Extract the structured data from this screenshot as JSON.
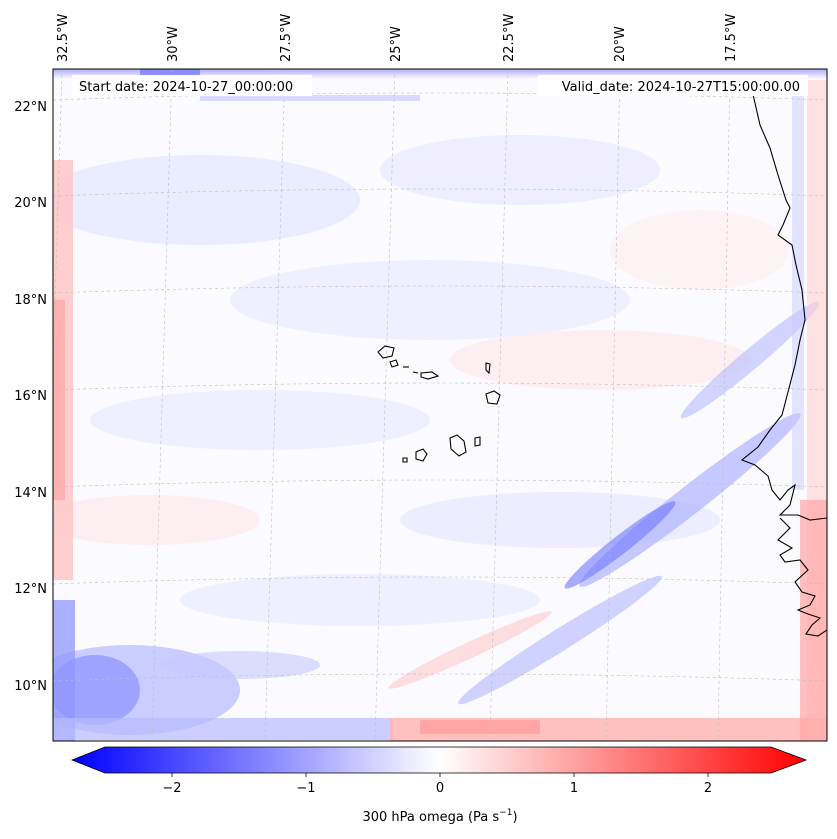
{
  "header": {
    "start_date": "Start date: 2024-10-27_00:00:00",
    "valid_date": "Valid_date: 2024-10-27T15:00:00.00"
  },
  "map": {
    "lon_labels": [
      "32.5°W",
      "30°W",
      "27.5°W",
      "25°W",
      "22.5°W",
      "20°W",
      "17.5°W"
    ],
    "lat_labels": [
      "22°N",
      "20°N",
      "18°N",
      "16°N",
      "14°N",
      "12°N",
      "10°N"
    ],
    "colors": {
      "negative": "#0000ff",
      "neutral": "#ffffff",
      "positive": "#ff0000",
      "coastline": "#000000"
    }
  },
  "colorbar": {
    "tick_labels": [
      "−2",
      "−1",
      "0",
      "1",
      "2"
    ],
    "label_main": "300 hPa omega (Pa s",
    "label_exp": "−1",
    "label_close": ")"
  }
}
